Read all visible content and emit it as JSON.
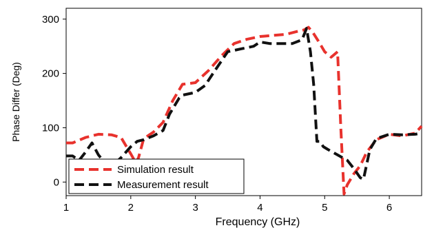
{
  "chart_data": {
    "type": "line",
    "xlabel": "Frequency (GHz)",
    "ylabel": "Phase Differ (Deg)",
    "xlim": [
      1,
      6.5
    ],
    "ylim": [
      -25,
      320
    ],
    "x_ticks": [
      "1",
      "2",
      "3",
      "4",
      "5",
      "6"
    ],
    "y_ticks": [
      "0",
      "100",
      "200",
      "300"
    ],
    "grid": false,
    "legend_position": "bottom-left",
    "series": [
      {
        "name": "Simulation result",
        "color": "#e8322d",
        "style": "dashed",
        "x": [
          1.0,
          1.1,
          1.3,
          1.5,
          1.7,
          1.85,
          2.0,
          2.08,
          2.12,
          2.2,
          2.35,
          2.5,
          2.65,
          2.8,
          3.0,
          3.2,
          3.4,
          3.6,
          3.8,
          4.0,
          4.2,
          4.4,
          4.6,
          4.68,
          4.75,
          4.82,
          4.9,
          5.0,
          5.1,
          5.2,
          5.25,
          5.3,
          5.35,
          5.45,
          5.55,
          5.65,
          5.8,
          6.0,
          6.2,
          6.4,
          6.5
        ],
        "y": [
          72,
          72,
          82,
          88,
          87,
          82,
          52,
          35,
          45,
          80,
          92,
          110,
          150,
          180,
          183,
          205,
          232,
          255,
          263,
          268,
          270,
          272,
          278,
          280,
          285,
          275,
          260,
          240,
          230,
          240,
          100,
          -22,
          -5,
          15,
          30,
          55,
          78,
          88,
          85,
          90,
          103
        ]
      },
      {
        "name": "Measurement result",
        "color": "#111111",
        "style": "dashed",
        "x": [
          1.0,
          1.1,
          1.2,
          1.3,
          1.4,
          1.5,
          1.6,
          1.7,
          1.85,
          2.0,
          2.1,
          2.2,
          2.35,
          2.5,
          2.6,
          2.75,
          2.8,
          3.0,
          3.15,
          3.3,
          3.5,
          3.7,
          3.9,
          4.0,
          4.15,
          4.3,
          4.5,
          4.65,
          4.72,
          4.78,
          4.83,
          4.88,
          4.92,
          4.98,
          5.05,
          5.2,
          5.35,
          5.45,
          5.55,
          5.6,
          5.7,
          5.8,
          6.0,
          6.2,
          6.4,
          6.5
        ],
        "y": [
          48,
          48,
          40,
          55,
          72,
          50,
          35,
          28,
          45,
          65,
          75,
          78,
          85,
          95,
          125,
          155,
          160,
          165,
          178,
          205,
          240,
          245,
          250,
          258,
          255,
          255,
          255,
          262,
          283,
          240,
          180,
          75,
          75,
          65,
          60,
          50,
          40,
          25,
          8,
          5,
          60,
          80,
          88,
          87,
          88,
          90
        ]
      }
    ]
  }
}
